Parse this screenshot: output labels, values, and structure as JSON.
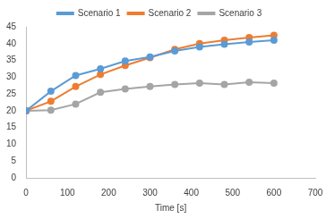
{
  "chart_data": {
    "type": "line",
    "x_label": "Time [s]",
    "x": [
      0,
      60,
      120,
      180,
      240,
      300,
      360,
      420,
      480,
      540,
      600
    ],
    "series": [
      {
        "name": "Scenario 1",
        "color": "#5b9bd5",
        "values": [
          20,
          25.8,
          30.5,
          32.5,
          34.8,
          36,
          37.8,
          39,
          39.8,
          40.5,
          41
        ]
      },
      {
        "name": "Scenario 2",
        "color": "#ed7d31",
        "values": [
          20,
          22.8,
          27.2,
          30.8,
          33.5,
          35.8,
          38.3,
          40,
          41,
          41.8,
          42.5
        ]
      },
      {
        "name": "Scenario 3",
        "color": "#a5a5a5",
        "values": [
          20,
          20.2,
          22,
          25.5,
          26.5,
          27.2,
          27.8,
          28.2,
          27.8,
          28.5,
          28.2
        ]
      }
    ],
    "xlim": [
      0,
      700
    ],
    "xticks": [
      0,
      100,
      200,
      300,
      400,
      500,
      600,
      700
    ],
    "ylim": [
      0,
      45
    ],
    "yticks": [
      0,
      5,
      10,
      15,
      20,
      25,
      30,
      35,
      40,
      45
    ],
    "grid": false,
    "legend": "top",
    "marker": "circle"
  }
}
